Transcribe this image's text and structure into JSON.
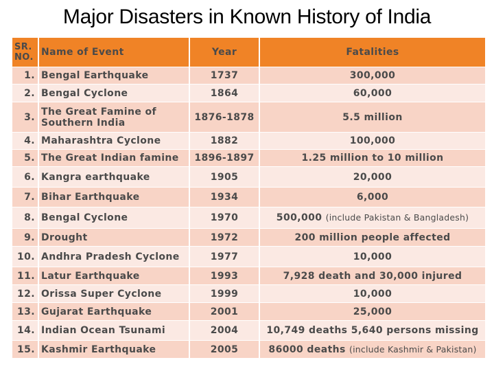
{
  "title": "Major Disasters in Known History of India",
  "headers": {
    "sr": "SR. NO.",
    "name": "Name of Event",
    "year": "Year",
    "fatalities": "Fatalities"
  },
  "rows": [
    {
      "sr": "1.",
      "name": "Bengal Earthquake",
      "year": "1737",
      "fatalities": "300,000",
      "note": ""
    },
    {
      "sr": "2.",
      "name": "Bengal Cyclone",
      "year": "1864",
      "fatalities": "60,000",
      "note": ""
    },
    {
      "sr": "3.",
      "name": "The Great Famine of Southern India",
      "year": "1876-1878",
      "fatalities": "5.5 million",
      "note": ""
    },
    {
      "sr": "4.",
      "name": "Maharashtra Cyclone",
      "year": "1882",
      "fatalities": "100,000",
      "note": ""
    },
    {
      "sr": "5.",
      "name": "The Great Indian famine",
      "year": "1896-1897",
      "fatalities": "1.25 million to 10 million",
      "note": ""
    },
    {
      "sr": "6.",
      "name": "Kangra earthquake",
      "year": "1905",
      "fatalities": "20,000",
      "note": ""
    },
    {
      "sr": "7.",
      "name": "Bihar Earthquake",
      "year": "1934",
      "fatalities": "6,000",
      "note": ""
    },
    {
      "sr": "8.",
      "name": "Bengal Cyclone",
      "year": "1970",
      "fatalities": "500,000",
      "note": "(include Pakistan & Bangladesh)"
    },
    {
      "sr": "9.",
      "name": "Drought",
      "year": "1972",
      "fatalities": "200 million people affected",
      "note": ""
    },
    {
      "sr": "10.",
      "name": "Andhra Pradesh Cyclone",
      "year": "1977",
      "fatalities": "10,000",
      "note": ""
    },
    {
      "sr": "11.",
      "name": "Latur Earthquake",
      "year": "1993",
      "fatalities": "7,928 death and 30,000 injured",
      "note": ""
    },
    {
      "sr": "12.",
      "name": "Orissa Super Cyclone",
      "year": "1999",
      "fatalities": "10,000",
      "note": ""
    },
    {
      "sr": "13.",
      "name": "Gujarat Earthquake",
      "year": "2001",
      "fatalities": "25,000",
      "note": ""
    },
    {
      "sr": "14.",
      "name": "Indian Ocean Tsunami",
      "year": "2004",
      "fatalities": "10,749 deaths 5,640 persons missing",
      "note": ""
    },
    {
      "sr": "15.",
      "name": "Kashmir Earthquake",
      "year": "2005",
      "fatalities": "86000 deaths",
      "note": "(include Kashmir & Pakistan)"
    }
  ],
  "colors": {
    "header": "#f08326",
    "row_odd": "#f8d4c6",
    "row_even": "#fbe9e3",
    "text": "#4a4a4a"
  }
}
